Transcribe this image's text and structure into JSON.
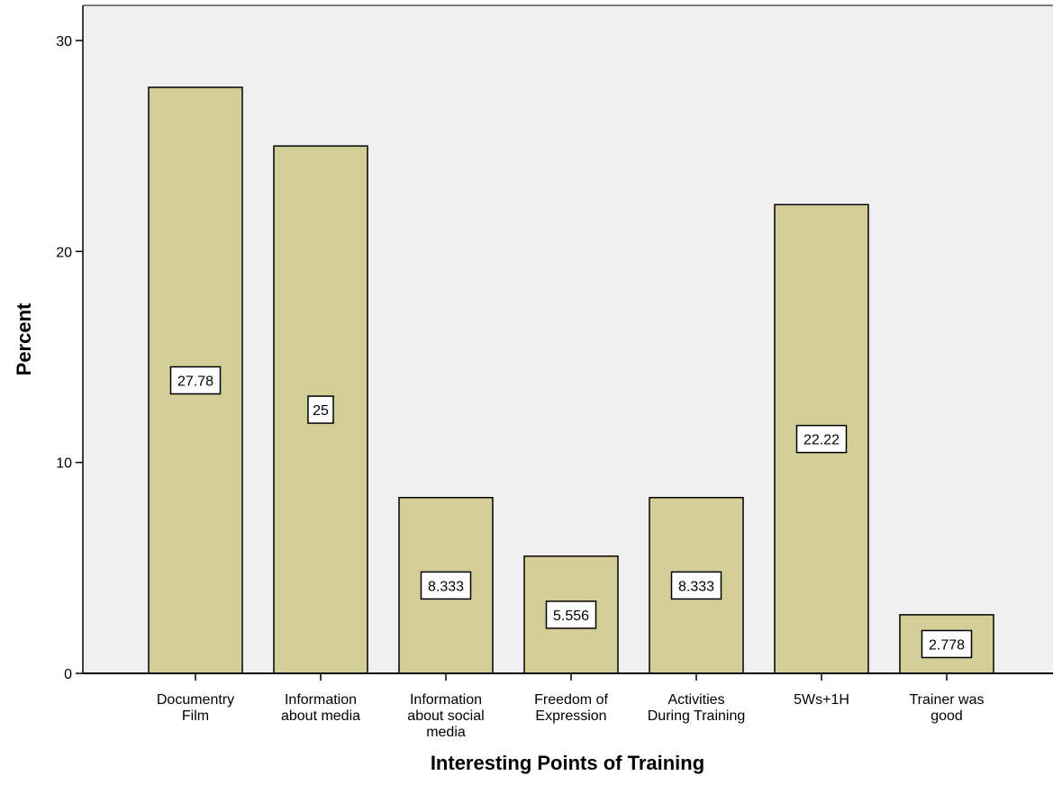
{
  "chart_data": {
    "type": "bar",
    "title": "",
    "xlabel": "Interesting Points of Training",
    "ylabel": "Percent",
    "ylim": [
      0,
      30
    ],
    "yticks": [
      0,
      10,
      20,
      30
    ],
    "grid": false,
    "legend": "none",
    "categories": [
      [
        "Documentry",
        "Film"
      ],
      [
        "Information",
        "about media"
      ],
      [
        "Information",
        "about social",
        "media"
      ],
      [
        "Freedom of",
        "Expression"
      ],
      [
        "Activities",
        "During Training"
      ],
      [
        "5Ws+1H"
      ],
      [
        "Trainer was",
        "good"
      ]
    ],
    "values": [
      27.78,
      25,
      8.333,
      5.556,
      8.333,
      22.22,
      2.778
    ],
    "data_labels": [
      "27.78",
      "25",
      "8.333",
      "5.556",
      "8.333",
      "22.22",
      "2.778"
    ],
    "colors": {
      "plot_background": "#F0F0F0",
      "bar_fill": "#D3CE97",
      "bar_stroke": "#000000",
      "label_box": "#FFFFFF"
    }
  }
}
